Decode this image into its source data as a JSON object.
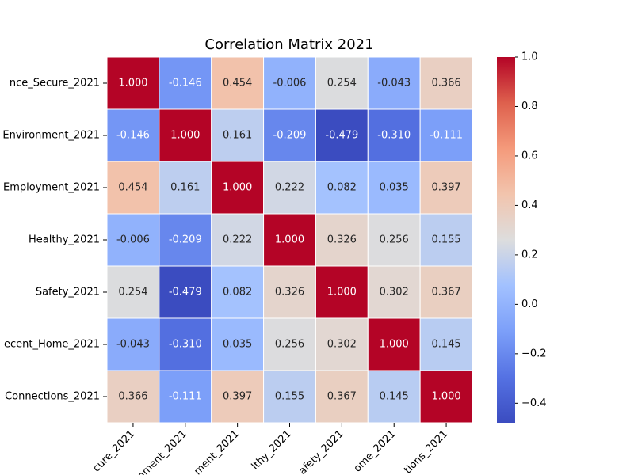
{
  "chart_data": {
    "type": "heatmap",
    "title": "Correlation Matrix 2021",
    "xlabels": [
      "cure_2021",
      "nment_2021",
      "ment_2021",
      "lthy_2021",
      "afety_2021",
      "ome_2021",
      "tions_2021"
    ],
    "ylabels": [
      "nce_Secure_2021",
      "Environment_2021",
      "Employment_2021",
      "Healthy_2021",
      "Safety_2021",
      "ecent_Home_2021",
      "Connections_2021"
    ],
    "values": [
      [
        1,
        -0.146,
        0.454,
        -0.006,
        0.254,
        -0.043,
        0.366
      ],
      [
        -0.146,
        1,
        0.161,
        -0.209,
        -0.479,
        -0.31,
        -0.111
      ],
      [
        0.454,
        0.161,
        1,
        0.222,
        0.082,
        0.035,
        0.397
      ],
      [
        -0.006,
        -0.209,
        0.222,
        1,
        0.326,
        0.256,
        0.155
      ],
      [
        0.254,
        -0.479,
        0.082,
        0.326,
        1,
        0.302,
        0.367
      ],
      [
        -0.043,
        -0.31,
        0.035,
        0.256,
        0.302,
        1,
        0.145
      ],
      [
        0.366,
        -0.111,
        0.397,
        0.155,
        0.367,
        0.145,
        1
      ]
    ],
    "value_labels": [
      [
        "1.000",
        "-0.146",
        "0.454",
        "-0.006",
        "0.254",
        "-0.043",
        "0.366"
      ],
      [
        "-0.146",
        "1.000",
        "0.161",
        "-0.209",
        "-0.479",
        "-0.310",
        "-0.111"
      ],
      [
        "0.454",
        "0.161",
        "1.000",
        "0.222",
        "0.082",
        "0.035",
        "0.397"
      ],
      [
        "-0.006",
        "-0.209",
        "0.222",
        "1.000",
        "0.326",
        "0.256",
        "0.155"
      ],
      [
        "0.254",
        "-0.479",
        "0.082",
        "0.326",
        "1.000",
        "0.302",
        "0.367"
      ],
      [
        "-0.043",
        "-0.310",
        "0.035",
        "0.256",
        "0.302",
        "1.000",
        "0.145"
      ],
      [
        "0.366",
        "-0.111",
        "0.397",
        "0.155",
        "0.367",
        "0.145",
        "1.000"
      ]
    ],
    "colormap": "coolwarm",
    "clim": [
      -0.479,
      1
    ],
    "cticks": [
      {
        "value": -0.4,
        "label": "−0.4"
      },
      {
        "value": -0.2,
        "label": "−0.2"
      },
      {
        "value": 0,
        "label": "0.0"
      },
      {
        "value": 0.2,
        "label": "0.2"
      },
      {
        "value": 0.4,
        "label": "0.4"
      },
      {
        "value": 0.6,
        "label": "0.6"
      },
      {
        "value": 0.8,
        "label": "0.8"
      },
      {
        "value": 1,
        "label": "1.0"
      }
    ]
  }
}
